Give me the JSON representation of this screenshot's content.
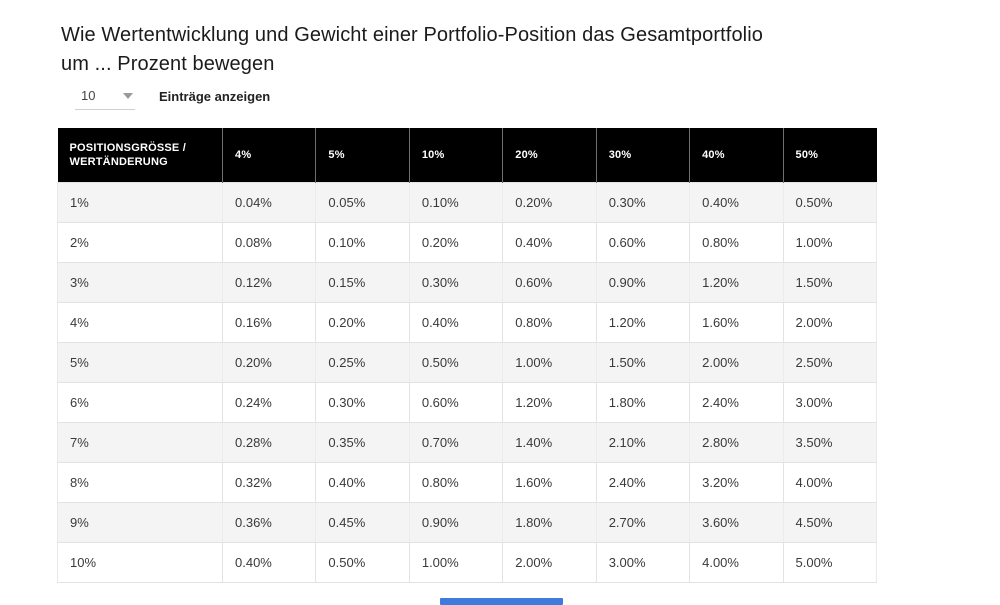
{
  "page": {
    "title": "Wie Wertentwicklung und Gewicht einer Portfolio-Position das Gesamtportfolio um ... Prozent bewegen"
  },
  "controls": {
    "entries_select_value": "10",
    "entries_label": "Einträge anzeigen"
  },
  "table": {
    "columns": [
      "POSITIONSGRÖSSE / WERTÄNDERUNG",
      "4%",
      "5%",
      "10%",
      "20%",
      "30%",
      "40%",
      "50%"
    ],
    "rows": [
      [
        "1%",
        "0.04%",
        "0.05%",
        "0.10%",
        "0.20%",
        "0.30%",
        "0.40%",
        "0.50%"
      ],
      [
        "2%",
        "0.08%",
        "0.10%",
        "0.20%",
        "0.40%",
        "0.60%",
        "0.80%",
        "1.00%"
      ],
      [
        "3%",
        "0.12%",
        "0.15%",
        "0.30%",
        "0.60%",
        "0.90%",
        "1.20%",
        "1.50%"
      ],
      [
        "4%",
        "0.16%",
        "0.20%",
        "0.40%",
        "0.80%",
        "1.20%",
        "1.60%",
        "2.00%"
      ],
      [
        "5%",
        "0.20%",
        "0.25%",
        "0.50%",
        "1.00%",
        "1.50%",
        "2.00%",
        "2.50%"
      ],
      [
        "6%",
        "0.24%",
        "0.30%",
        "0.60%",
        "1.20%",
        "1.80%",
        "2.40%",
        "3.00%"
      ],
      [
        "7%",
        "0.28%",
        "0.35%",
        "0.70%",
        "1.40%",
        "2.10%",
        "2.80%",
        "3.50%"
      ],
      [
        "8%",
        "0.32%",
        "0.40%",
        "0.80%",
        "1.60%",
        "2.40%",
        "3.20%",
        "4.00%"
      ],
      [
        "9%",
        "0.36%",
        "0.45%",
        "0.90%",
        "1.80%",
        "2.70%",
        "3.60%",
        "4.50%"
      ],
      [
        "10%",
        "0.40%",
        "0.50%",
        "1.00%",
        "2.00%",
        "3.00%",
        "4.00%",
        "5.00%"
      ]
    ]
  },
  "colors": {
    "header_bg": "#000000",
    "header_text": "#ffffff",
    "row_alt_bg": "#f4f4f4",
    "border": "#e3e3e3",
    "scrollbar_thumb": "#3e7bdd"
  }
}
